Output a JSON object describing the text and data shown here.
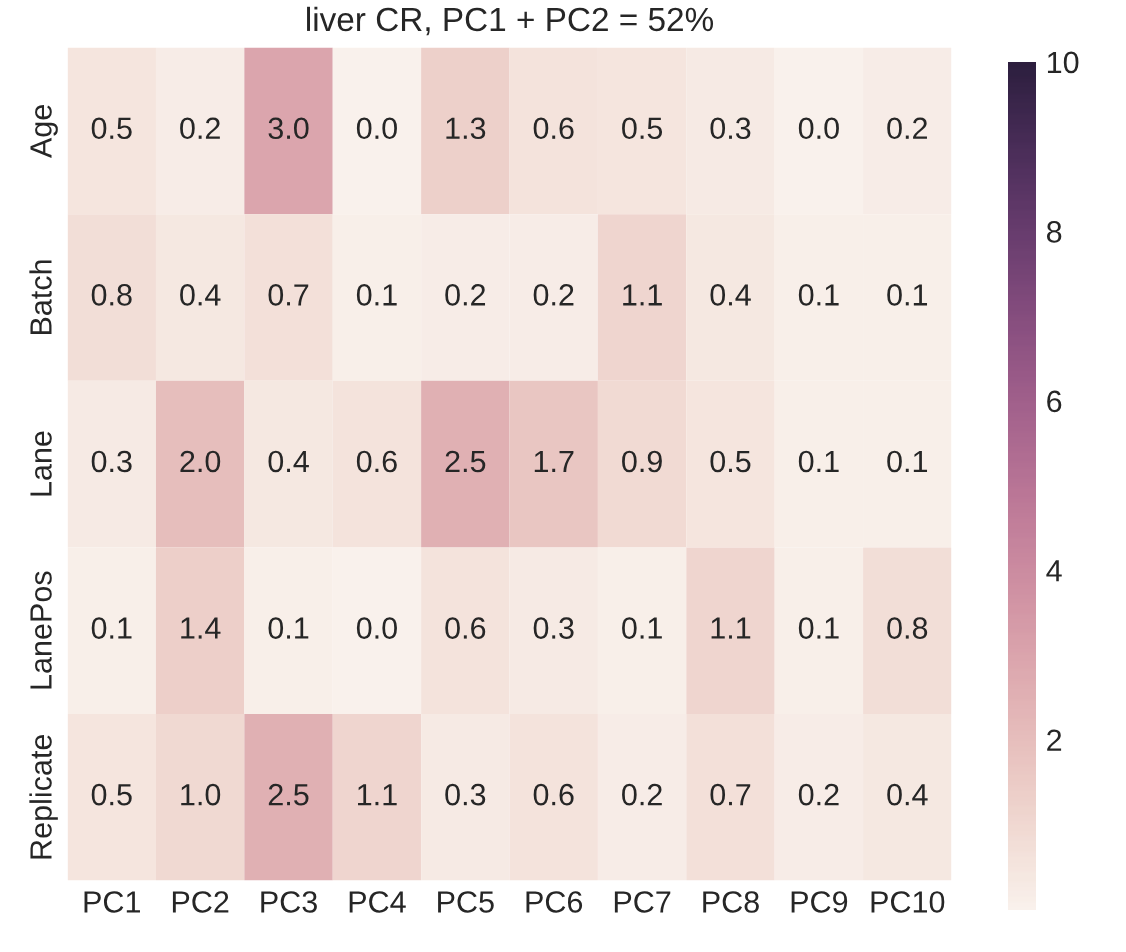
{
  "chart_data": {
    "type": "heatmap",
    "title": "liver CR, PC1 + PC2 = 52%",
    "categories": [
      "PC1",
      "PC2",
      "PC3",
      "PC4",
      "PC5",
      "PC6",
      "PC7",
      "PC8",
      "PC9",
      "PC10"
    ],
    "y_categories": [
      "Age",
      "Batch",
      "Lane",
      "LanePos",
      "Replicate"
    ],
    "cells": [
      [
        0.5,
        0.2,
        3.0,
        0.0,
        1.3,
        0.6,
        0.5,
        0.3,
        0.0,
        0.2
      ],
      [
        0.8,
        0.4,
        0.7,
        0.1,
        0.2,
        0.2,
        1.1,
        0.4,
        0.1,
        0.1
      ],
      [
        0.3,
        2.0,
        0.4,
        0.6,
        2.5,
        1.7,
        0.9,
        0.5,
        0.1,
        0.1
      ],
      [
        0.1,
        1.4,
        0.1,
        0.0,
        0.6,
        0.3,
        0.1,
        1.1,
        0.1,
        0.8
      ],
      [
        0.5,
        1.0,
        2.5,
        1.1,
        0.3,
        0.6,
        0.2,
        0.7,
        0.2,
        0.4
      ]
    ],
    "cell_labels": [
      [
        "0.5",
        "0.2",
        "3.0",
        "0.0",
        "1.3",
        "0.6",
        "0.5",
        "0.3",
        "0.0",
        "0.2"
      ],
      [
        "0.8",
        "0.4",
        "0.7",
        "0.1",
        "0.2",
        "0.2",
        "1.1",
        "0.4",
        "0.1",
        "0.1"
      ],
      [
        "0.3",
        "2.0",
        "0.4",
        "0.6",
        "2.5",
        "1.7",
        "0.9",
        "0.5",
        "0.1",
        "0.1"
      ],
      [
        "0.1",
        "1.4",
        "0.1",
        "0.0",
        "0.6",
        "0.3",
        "0.1",
        "1.1",
        "0.1",
        "0.8"
      ],
      [
        "0.5",
        "1.0",
        "2.5",
        "1.1",
        "0.3",
        "0.6",
        "0.2",
        "0.7",
        "0.2",
        "0.4"
      ]
    ],
    "clim": [
      0,
      10
    ],
    "cticks": [
      2,
      4,
      6,
      8,
      10
    ]
  }
}
